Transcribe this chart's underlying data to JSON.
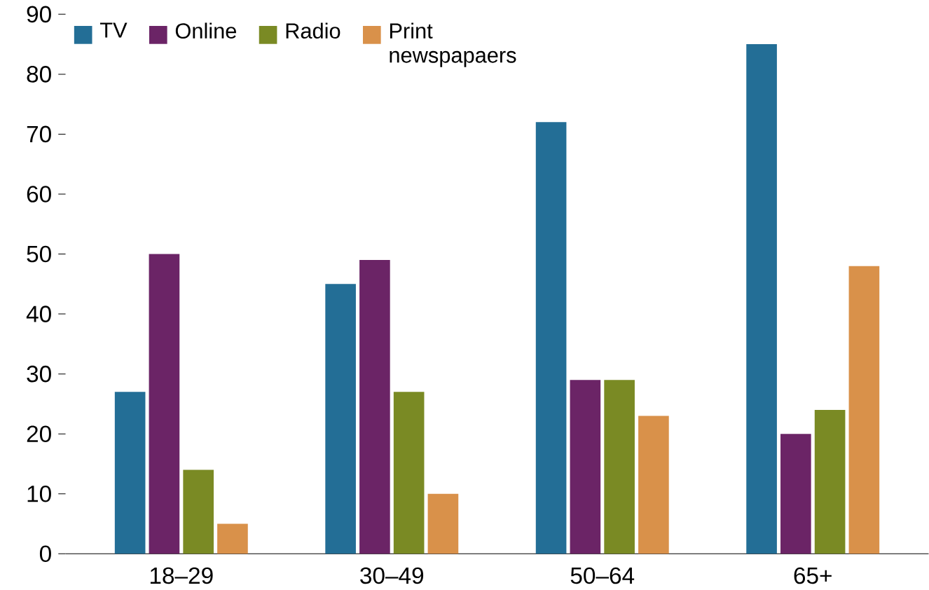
{
  "chart_data": {
    "type": "bar",
    "categories": [
      "18–29",
      "30–49",
      "50–64",
      "65+"
    ],
    "series": [
      {
        "name": "TV",
        "color": "#236e96",
        "values": [
          27,
          45,
          72,
          85
        ]
      },
      {
        "name": "Online",
        "color": "#6b2466",
        "values": [
          50,
          49,
          29,
          20
        ]
      },
      {
        "name": "Radio",
        "color": "#7a8a24",
        "values": [
          14,
          27,
          29,
          24
        ]
      },
      {
        "name": "Print newspapaers",
        "color": "#d9914a",
        "values": [
          5,
          10,
          23,
          48
        ]
      }
    ],
    "ylim": [
      0,
      90
    ],
    "yticks": [
      0,
      10,
      20,
      30,
      40,
      50,
      60,
      70,
      80,
      90
    ],
    "legend": "top left"
  }
}
